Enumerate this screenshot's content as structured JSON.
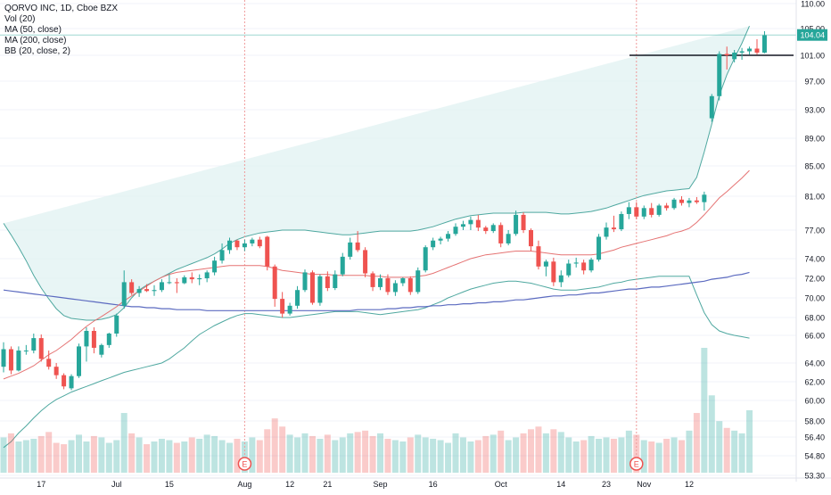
{
  "chart_data": {
    "type": "candlestick",
    "symbol_line": "QORVO INC, 1D, Cboe BZX",
    "indicators": [
      "Vol (20)",
      "MA (50, close)",
      "MA (200, close)",
      "BB (20, close, 2)"
    ],
    "y_ticks": [
      53.3,
      54.8,
      56.4,
      58.0,
      60.0,
      62.0,
      64.0,
      66.0,
      68.0,
      70.0,
      72.0,
      74.0,
      77.0,
      81.0,
      85.0,
      89.0,
      93.0,
      97.0,
      101.0,
      105.0,
      110.0
    ],
    "y_tick_labels": [
      "53.30",
      "54.80",
      "56.40",
      "58.00",
      "60.00",
      "62.00",
      "64.00",
      "66.00",
      "68.00",
      "70.00",
      "72.00",
      "74.00",
      "77.00",
      "81.00",
      "85.00",
      "89.00",
      "93.00",
      "97.00",
      "101.00",
      "105.00",
      "110.00"
    ],
    "x_labels": [
      {
        "label": "17",
        "bar": 5
      },
      {
        "label": "Jul",
        "bar": 15
      },
      {
        "label": "15",
        "bar": 22
      },
      {
        "label": "Aug",
        "bar": 32
      },
      {
        "label": "12",
        "bar": 38
      },
      {
        "label": "21",
        "bar": 43
      },
      {
        "label": "Sep",
        "bar": 50
      },
      {
        "label": "16",
        "bar": 57
      },
      {
        "label": "Oct",
        "bar": 66
      },
      {
        "label": "14",
        "bar": 74
      },
      {
        "label": "23",
        "bar": 80
      },
      {
        "label": "Nov",
        "bar": 85
      },
      {
        "label": "12",
        "bar": 91
      }
    ],
    "last_price": "104.04",
    "last_price_value": 104.04,
    "horizontal_line": 101.0,
    "earnings_markers": [
      {
        "bar": 32,
        "label": "E"
      },
      {
        "bar": 84,
        "label": "E"
      }
    ],
    "colors": {
      "up": "#26a69a",
      "down": "#ef5350",
      "ma50": "#e57373",
      "ma200": "#5c6bc0",
      "bb_line": "#4fa8a0",
      "bb_fill": "#e0f2f1",
      "hline": "#131722",
      "last_price": "#26a69a"
    },
    "ohlc": [
      [
        63.6,
        65.5,
        63.0,
        65.0
      ],
      [
        65.0,
        65.2,
        62.8,
        63.2
      ],
      [
        63.2,
        65.2,
        63.1,
        64.9
      ],
      [
        64.9,
        65.3,
        64.6,
        64.9
      ],
      [
        64.9,
        66.2,
        64.7,
        65.8
      ],
      [
        65.8,
        66.1,
        64.1,
        64.3
      ],
      [
        64.3,
        64.9,
        63.3,
        63.6
      ],
      [
        63.6,
        64.0,
        62.3,
        62.7
      ],
      [
        62.7,
        62.9,
        61.2,
        61.5
      ],
      [
        61.3,
        62.8,
        61.1,
        62.6
      ],
      [
        62.6,
        65.4,
        62.4,
        65.2
      ],
      [
        65.2,
        66.9,
        64.1,
        66.5
      ],
      [
        66.5,
        66.9,
        64.7,
        65.1
      ],
      [
        64.6,
        65.4,
        64.4,
        65.3
      ],
      [
        65.3,
        66.3,
        65.1,
        66.2
      ],
      [
        66.2,
        68.4,
        65.9,
        68.2
      ],
      [
        69.2,
        72.8,
        68.9,
        71.6
      ],
      [
        71.6,
        71.9,
        70.3,
        70.5
      ],
      [
        70.5,
        71.2,
        70.1,
        70.9
      ],
      [
        70.9,
        71.4,
        70.6,
        70.7
      ],
      [
        70.7,
        71.3,
        70.2,
        70.8
      ],
      [
        70.8,
        71.9,
        70.6,
        71.6
      ],
      [
        71.6,
        72.4,
        71.4,
        71.6
      ],
      [
        71.6,
        72.0,
        70.5,
        71.5
      ],
      [
        71.5,
        72.3,
        71.4,
        72.1
      ],
      [
        72.1,
        72.6,
        71.5,
        71.9
      ],
      [
        71.9,
        72.4,
        71.3,
        72.0
      ],
      [
        72.0,
        72.8,
        71.6,
        72.6
      ],
      [
        72.6,
        74.2,
        72.3,
        73.8
      ],
      [
        73.8,
        75.6,
        73.5,
        74.9
      ],
      [
        74.9,
        76.2,
        74.5,
        75.9
      ],
      [
        75.9,
        76.0,
        74.9,
        75.2
      ],
      [
        75.2,
        76.0,
        74.8,
        75.6
      ],
      [
        75.6,
        76.2,
        75.3,
        76.0
      ],
      [
        76.0,
        76.3,
        75.1,
        75.3
      ],
      [
        76.3,
        76.4,
        72.8,
        73.2
      ],
      [
        73.2,
        73.4,
        69.1,
        69.9
      ],
      [
        69.9,
        70.6,
        68.0,
        68.4
      ],
      [
        68.4,
        69.5,
        68.2,
        69.2
      ],
      [
        69.2,
        71.2,
        68.9,
        70.8
      ],
      [
        70.8,
        72.9,
        70.6,
        72.6
      ],
      [
        72.6,
        72.8,
        69.3,
        69.5
      ],
      [
        69.5,
        72.4,
        69.2,
        72.2
      ],
      [
        72.2,
        72.7,
        70.7,
        71.0
      ],
      [
        71.0,
        72.8,
        70.8,
        72.4
      ],
      [
        72.4,
        74.6,
        72.2,
        74.2
      ],
      [
        74.2,
        76.2,
        73.9,
        75.7
      ],
      [
        75.7,
        76.9,
        74.7,
        74.9
      ],
      [
        74.9,
        75.2,
        72.1,
        72.5
      ],
      [
        72.5,
        72.7,
        70.7,
        71.1
      ],
      [
        71.1,
        72.4,
        70.8,
        72.0
      ],
      [
        72.0,
        72.4,
        70.3,
        70.6
      ],
      [
        70.6,
        71.8,
        70.2,
        71.5
      ],
      [
        71.5,
        72.1,
        71.2,
        72.0
      ],
      [
        72.0,
        72.2,
        70.3,
        70.6
      ],
      [
        70.6,
        73.1,
        70.4,
        72.8
      ],
      [
        72.8,
        75.4,
        72.6,
        75.2
      ],
      [
        75.2,
        76.2,
        74.9,
        75.9
      ],
      [
        75.9,
        76.3,
        75.5,
        76.1
      ],
      [
        76.1,
        76.9,
        75.8,
        76.6
      ],
      [
        76.6,
        77.8,
        76.4,
        77.4
      ],
      [
        77.4,
        78.1,
        77.0,
        77.7
      ],
      [
        77.7,
        78.6,
        77.0,
        78.2
      ],
      [
        78.2,
        78.8,
        76.9,
        77.3
      ],
      [
        77.3,
        77.5,
        76.6,
        76.9
      ],
      [
        76.9,
        77.8,
        76.7,
        77.6
      ],
      [
        77.6,
        77.9,
        75.2,
        75.6
      ],
      [
        75.6,
        77.0,
        75.4,
        76.6
      ],
      [
        76.6,
        79.3,
        76.4,
        78.8
      ],
      [
        78.8,
        79.1,
        76.7,
        77.0
      ],
      [
        77.0,
        77.2,
        74.8,
        75.3
      ],
      [
        75.3,
        75.9,
        72.9,
        73.2
      ],
      [
        73.2,
        73.9,
        72.2,
        73.7
      ],
      [
        73.7,
        74.1,
        71.2,
        71.6
      ],
      [
        71.6,
        72.8,
        71.1,
        72.3
      ],
      [
        72.3,
        73.9,
        72.1,
        73.5
      ],
      [
        73.5,
        74.1,
        73.1,
        73.6
      ],
      [
        73.6,
        73.9,
        72.4,
        72.8
      ],
      [
        72.8,
        74.1,
        72.6,
        73.9
      ],
      [
        73.9,
        76.6,
        73.7,
        76.3
      ],
      [
        76.3,
        77.9,
        76.0,
        77.3
      ],
      [
        77.3,
        78.7,
        76.8,
        77.1
      ],
      [
        77.1,
        79.2,
        76.9,
        78.9
      ],
      [
        78.9,
        80.3,
        78.3,
        79.7
      ],
      [
        79.7,
        80.3,
        78.3,
        78.6
      ],
      [
        78.6,
        79.9,
        78.3,
        79.6
      ],
      [
        79.6,
        80.2,
        78.5,
        78.8
      ],
      [
        78.8,
        80.1,
        78.6,
        79.9
      ],
      [
        79.9,
        80.2,
        79.3,
        79.6
      ],
      [
        79.6,
        80.8,
        79.4,
        80.6
      ],
      [
        80.6,
        81.0,
        79.9,
        80.2
      ],
      [
        80.2,
        80.8,
        79.7,
        80.5
      ],
      [
        80.5,
        80.9,
        80.1,
        80.3
      ],
      [
        80.3,
        81.6,
        79.3,
        81.2
      ],
      [
        91.8,
        95.2,
        91.3,
        94.9
      ],
      [
        94.9,
        101.6,
        94.3,
        101.2
      ],
      [
        101.2,
        102.3,
        98.8,
        101.0
      ],
      [
        100.4,
        101.8,
        99.9,
        101.4
      ],
      [
        101.4,
        102.1,
        100.3,
        101.6
      ],
      [
        101.6,
        102.3,
        101.1,
        102.0
      ],
      [
        102.0,
        103.4,
        101.1,
        101.4
      ],
      [
        101.4,
        104.6,
        101.3,
        104.0
      ]
    ],
    "volume": [
      2.6,
      2.9,
      2.3,
      2.4,
      2.5,
      2.7,
      3.0,
      2.2,
      2.1,
      2.4,
      2.8,
      2.3,
      2.7,
      2.6,
      2.2,
      2.4,
      4.4,
      2.9,
      2.6,
      2.1,
      2.3,
      2.5,
      2.4,
      2.2,
      2.3,
      2.6,
      2.5,
      2.8,
      2.7,
      2.4,
      2.2,
      2.5,
      2.3,
      2.6,
      2.4,
      3.2,
      4.0,
      3.4,
      2.8,
      2.6,
      2.9,
      2.7,
      2.5,
      2.8,
      2.4,
      2.6,
      2.9,
      3.0,
      3.1,
      2.7,
      2.9,
      2.5,
      2.4,
      2.3,
      2.6,
      2.8,
      2.6,
      2.5,
      2.4,
      2.2,
      2.9,
      2.6,
      2.3,
      2.4,
      2.7,
      2.8,
      3.1,
      2.4,
      2.6,
      2.9,
      3.2,
      3.4,
      2.9,
      3.2,
      3.0,
      2.6,
      2.3,
      2.4,
      2.7,
      2.5,
      2.6,
      2.5,
      2.6,
      3.1,
      2.8,
      2.4,
      2.3,
      2.2,
      2.5,
      2.6,
      2.4,
      3.1,
      4.4,
      9.2,
      5.7,
      3.8,
      3.3,
      3.1,
      2.9,
      4.6
    ],
    "ma50": [
      62.3,
      62.6,
      62.9,
      63.3,
      63.7,
      64.2,
      64.6,
      64.9,
      65.3,
      65.7,
      66.3,
      67.0,
      67.6,
      68.1,
      68.6,
      69.1,
      69.7,
      70.2,
      70.7,
      71.2,
      71.7,
      72.1,
      72.4,
      72.6,
      72.7,
      72.8,
      72.9,
      73.0,
      73.1,
      73.2,
      73.3,
      73.3,
      73.3,
      73.3,
      73.3,
      73.2,
      73.0,
      72.8,
      72.7,
      72.6,
      72.5,
      72.4,
      72.4,
      72.4,
      72.3,
      72.3,
      72.3,
      72.3,
      72.3,
      72.2,
      72.2,
      72.1,
      72.1,
      72.1,
      72.1,
      72.2,
      72.3,
      72.5,
      72.8,
      73.1,
      73.4,
      73.7,
      74.0,
      74.2,
      74.4,
      74.5,
      74.6,
      74.7,
      74.8,
      74.8,
      74.8,
      74.7,
      74.6,
      74.5,
      74.4,
      74.4,
      74.4,
      74.4,
      74.4,
      74.5,
      74.7,
      74.9,
      75.2,
      75.4,
      75.6,
      75.8,
      76.0,
      76.2,
      76.4,
      76.7,
      76.9,
      77.2,
      77.9,
      78.8,
      79.8,
      80.8,
      81.6,
      82.5,
      83.4,
      84.4
    ],
    "ma200": [
      70.8,
      70.7,
      70.6,
      70.5,
      70.4,
      70.3,
      70.2,
      70.1,
      70.0,
      69.9,
      69.8,
      69.7,
      69.6,
      69.5,
      69.4,
      69.3,
      69.2,
      69.1,
      69.1,
      69.0,
      69.0,
      68.9,
      68.9,
      68.8,
      68.8,
      68.8,
      68.8,
      68.7,
      68.7,
      68.7,
      68.7,
      68.7,
      68.7,
      68.7,
      68.7,
      68.7,
      68.7,
      68.7,
      68.7,
      68.7,
      68.7,
      68.7,
      68.7,
      68.7,
      68.7,
      68.7,
      68.7,
      68.8,
      68.8,
      68.8,
      68.8,
      68.9,
      68.9,
      69.0,
      69.0,
      69.1,
      69.1,
      69.2,
      69.2,
      69.3,
      69.3,
      69.4,
      69.4,
      69.5,
      69.5,
      69.6,
      69.6,
      69.7,
      69.8,
      69.8,
      69.9,
      70.0,
      70.1,
      70.2,
      70.2,
      70.3,
      70.3,
      70.4,
      70.5,
      70.5,
      70.6,
      70.7,
      70.8,
      70.9,
      70.9,
      71.0,
      71.1,
      71.1,
      71.2,
      71.3,
      71.4,
      71.5,
      71.6,
      71.7,
      71.9,
      72.0,
      72.1,
      72.3,
      72.4,
      72.6
    ],
    "bb_upper": [
      77.8,
      76.5,
      75.2,
      73.8,
      72.3,
      71.0,
      69.9,
      68.9,
      68.2,
      67.9,
      67.8,
      67.7,
      67.7,
      67.8,
      68.0,
      68.3,
      69.0,
      70.0,
      70.8,
      71.3,
      71.7,
      72.1,
      72.5,
      72.9,
      73.2,
      73.5,
      73.8,
      74.1,
      74.5,
      75.0,
      75.6,
      76.0,
      76.3,
      76.5,
      76.7,
      76.8,
      76.9,
      77.0,
      77.0,
      77.0,
      77.0,
      76.9,
      76.8,
      76.7,
      76.6,
      76.5,
      76.5,
      76.6,
      76.7,
      76.8,
      76.9,
      76.9,
      76.9,
      76.9,
      76.9,
      77.0,
      77.2,
      77.4,
      77.7,
      78.0,
      78.3,
      78.5,
      78.7,
      78.8,
      78.9,
      79.0,
      79.0,
      79.0,
      79.0,
      79.1,
      79.1,
      79.1,
      79.1,
      79.0,
      78.9,
      78.9,
      79.0,
      79.1,
      79.2,
      79.4,
      79.6,
      79.9,
      80.2,
      80.5,
      80.8,
      81.1,
      81.3,
      81.5,
      81.7,
      81.8,
      81.9,
      82.0,
      83.5,
      87.0,
      91.0,
      95.0,
      98.0,
      100.5,
      102.8,
      105.5
    ],
    "bb_lower": [
      55.5,
      56.0,
      56.8,
      57.5,
      58.3,
      59.0,
      59.6,
      60.1,
      60.5,
      60.9,
      61.2,
      61.5,
      61.8,
      62.1,
      62.4,
      62.7,
      63.0,
      63.2,
      63.4,
      63.6,
      63.8,
      64.0,
      64.3,
      64.7,
      65.1,
      65.6,
      66.1,
      66.6,
      67.1,
      67.5,
      67.9,
      68.2,
      68.4,
      68.4,
      68.3,
      68.2,
      68.1,
      68.0,
      68.0,
      68.1,
      68.2,
      68.3,
      68.4,
      68.5,
      68.6,
      68.6,
      68.6,
      68.6,
      68.5,
      68.4,
      68.3,
      68.4,
      68.5,
      68.6,
      68.7,
      68.8,
      69.0,
      69.3,
      69.6,
      70.0,
      70.3,
      70.6,
      70.9,
      71.1,
      71.3,
      71.5,
      71.6,
      71.7,
      71.7,
      71.6,
      71.5,
      71.3,
      71.1,
      70.9,
      70.8,
      70.8,
      70.8,
      70.9,
      71.0,
      71.1,
      71.3,
      71.5,
      71.6,
      71.8,
      71.9,
      72.0,
      72.1,
      72.2,
      72.2,
      72.2,
      72.2,
      72.2,
      70.3,
      68.5,
      67.2,
      66.5,
      66.2,
      66.0,
      65.9,
      65.8
    ]
  }
}
